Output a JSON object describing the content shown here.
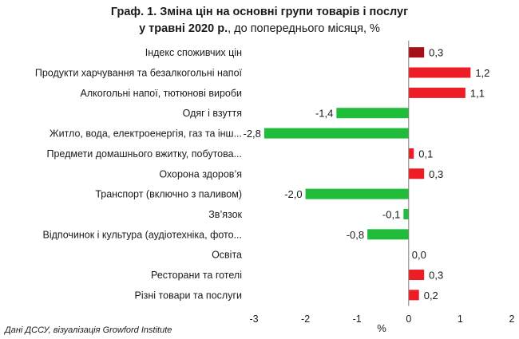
{
  "chart_data": {
    "type": "bar",
    "orientation": "horizontal",
    "title_line1": "Граф. 1. Зміна цін на основні групи товарів і послуг",
    "title_line2_bold": "у травні 2020 р.",
    "title_line2_rest": ", до попереднього місяця, %",
    "xlabel": "%",
    "source": "Дані ДССУ, візуалізація Growford Institute",
    "xlim": [
      -3,
      2
    ],
    "xticks": [
      "-3",
      "-2",
      "-1",
      "0",
      "1",
      "2"
    ],
    "grid": false,
    "categories": [
      "Індекс споживчих цін",
      "Продукти харчування та безалкогольні напої",
      "Алкогольні напої, тютюнові вироби",
      "Одяг і взуття",
      "Житло, вода, електроенергія, газ та інш...",
      "Предмети домашнього вжитку, побутова...",
      "Охорона здоров’я",
      "Транспорт (включно з паливом)",
      "Зв’язок",
      "Відпочинок і культура (аудіотехніка, фото...",
      "Освіта",
      "Ресторани та готелі",
      "Різні товари та послуги"
    ],
    "values": [
      0.3,
      1.2,
      1.1,
      -1.4,
      -2.8,
      0.1,
      0.3,
      -2.0,
      -0.1,
      -0.8,
      0.0,
      0.3,
      0.2
    ],
    "value_labels": [
      "0,3",
      "1,2",
      "1,1",
      "-1,4",
      "-2,8",
      "0,1",
      "0,3",
      "-2,0",
      "-0,1",
      "-0,8",
      "0,0",
      "0,3",
      "0,2"
    ],
    "colors": {
      "index": "#a50f15",
      "positive": "#ee1c24",
      "negative": "#1fbd3a",
      "axis": "#7f7f7f",
      "text": "#1a1a1a"
    }
  }
}
